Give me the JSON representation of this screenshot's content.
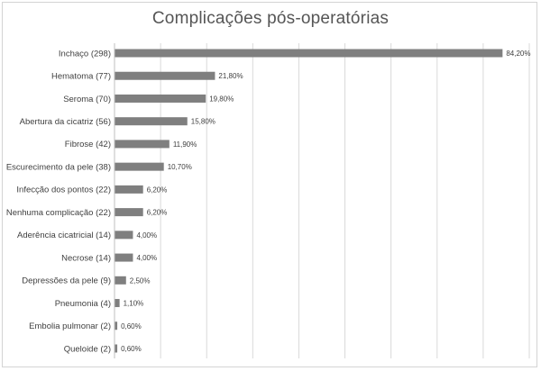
{
  "chart_data": {
    "type": "bar",
    "orientation": "horizontal",
    "title": "Complicações pós-operatórias",
    "categories": [
      "Inchaço (298)",
      "Hematoma (77)",
      "Seroma (70)",
      "Abertura da cicatriz (56)",
      "Fibrose (42)",
      "Escurecimento da pele (38)",
      "Infecção dos pontos (22)",
      "Nenhuma complicação (22)",
      "Aderência cicatricial (14)",
      "Necrose (14)",
      "Depressões da pele (9)",
      "Pneumonia (4)",
      "Embolia pulmonar (2)",
      "Queloide (2)"
    ],
    "values": [
      84.2,
      21.8,
      19.8,
      15.8,
      11.9,
      10.7,
      6.2,
      6.2,
      4.0,
      4.0,
      2.5,
      1.1,
      0.6,
      0.6
    ],
    "value_labels": [
      "84,20%",
      "21,80%",
      "19,80%",
      "15,80%",
      "11,90%",
      "10,70%",
      "6,20%",
      "6,20%",
      "4,00%",
      "4,00%",
      "2,50%",
      "1,10%",
      "0,60%",
      "0,60%"
    ],
    "xlim": [
      0,
      90
    ],
    "grid": true,
    "bar_color": "#7f7f7f"
  }
}
